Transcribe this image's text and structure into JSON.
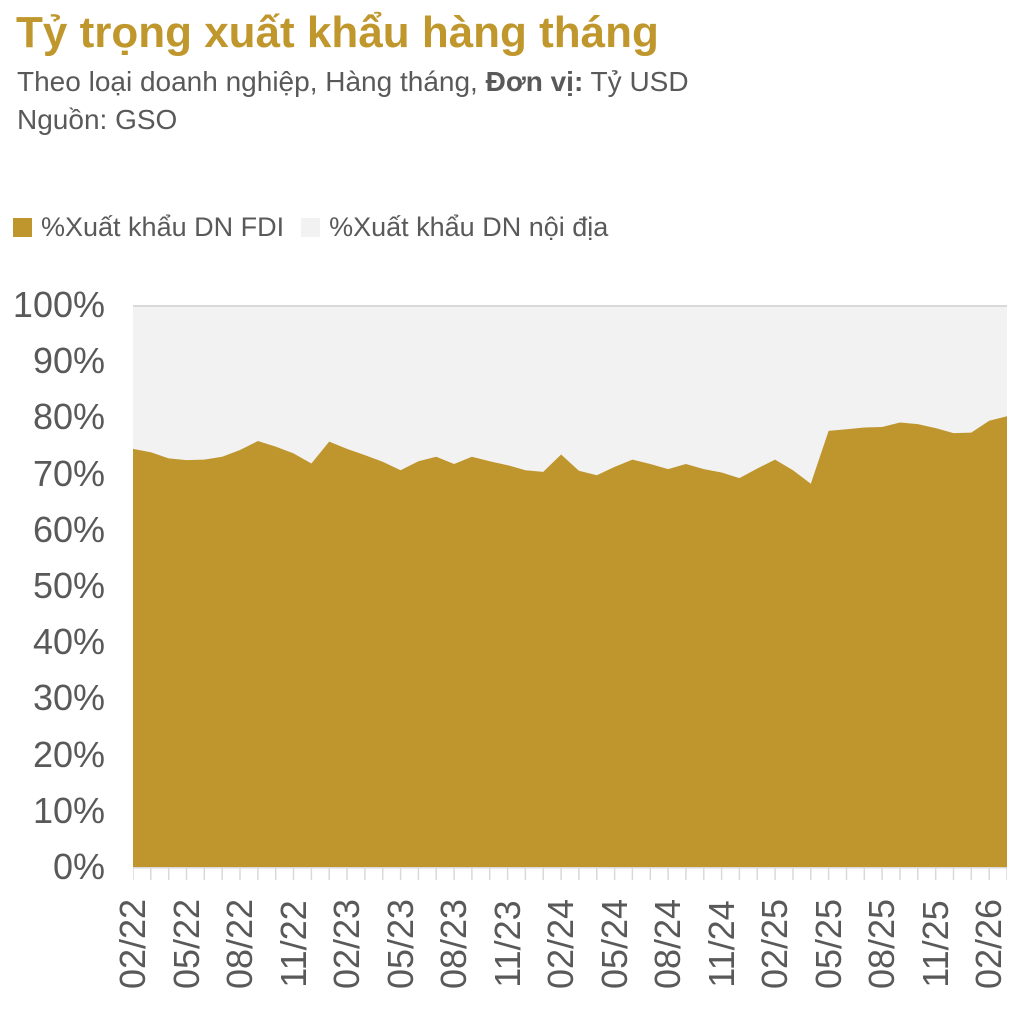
{
  "header": {
    "title": "Tỷ trọng xuất khẩu hàng tháng",
    "subtitle_prefix": "Theo loại doanh nghiệp, Hàng tháng, ",
    "subtitle_bold": "Đơn vị:",
    "subtitle_suffix": " Tỷ USD",
    "source": "Nguồn: GSO"
  },
  "legend": [
    {
      "label": "%Xuất khẩu DN FDI",
      "color": "#BF962D"
    },
    {
      "label": "%Xuất khẩu DN nội địa",
      "color": "#F2F2F2"
    }
  ],
  "colors": {
    "accent_gold": "#BF962D",
    "title_gold": "#C0972D",
    "light_gray_area": "#F2F2F2",
    "grid_border": "#D9D9D9",
    "text_gray": "#595959",
    "background": "#FFFFFF"
  },
  "chart_data": {
    "type": "area",
    "stacked_percent": true,
    "title": "Tỷ trọng xuất khẩu hàng tháng",
    "xlabel": "",
    "ylabel": "",
    "ylim": [
      0,
      100
    ],
    "grid": false,
    "legend_position": "top-left",
    "x_label_every": 3,
    "x": [
      "02/22",
      "03/22",
      "04/22",
      "05/22",
      "06/22",
      "07/22",
      "08/22",
      "09/22",
      "10/22",
      "11/22",
      "12/22",
      "01/23",
      "02/23",
      "03/23",
      "04/23",
      "05/23",
      "06/23",
      "07/23",
      "08/23",
      "09/23",
      "10/23",
      "11/23",
      "12/23",
      "01/24",
      "02/24",
      "03/24",
      "04/24",
      "05/24",
      "06/24",
      "07/24",
      "08/24",
      "09/24",
      "10/24",
      "11/24",
      "12/24",
      "01/25",
      "02/25",
      "03/25",
      "04/25",
      "05/25",
      "06/25",
      "07/25",
      "08/25",
      "09/25",
      "10/25",
      "11/25",
      "12/25",
      "01/26",
      "02/26",
      "03/26"
    ],
    "y_ticks": [
      "100%",
      "90%",
      "80%",
      "70%",
      "60%",
      "50%",
      "40%",
      "30%",
      "20%",
      "10%",
      "0%"
    ],
    "series": [
      {
        "name": "%Xuất khẩu DN FDI",
        "color": "#BF962D",
        "values": [
          74.4,
          73.8,
          72.7,
          72.4,
          72.5,
          73.0,
          74.2,
          75.8,
          74.8,
          73.6,
          71.8,
          75.7,
          74.4,
          73.3,
          72.1,
          70.6,
          72.2,
          73.0,
          71.7,
          73.0,
          72.2,
          71.5,
          70.6,
          70.3,
          73.4,
          70.5,
          69.7,
          71.2,
          72.5,
          71.7,
          70.8,
          71.7,
          70.8,
          70.2,
          69.2,
          70.9,
          72.5,
          70.6,
          68.2,
          77.6,
          77.9,
          78.2,
          78.3,
          79.1,
          78.8,
          78.1,
          77.2,
          77.3,
          79.4,
          80.2
        ]
      },
      {
        "name": "%Xuất khẩu DN nội địa",
        "color": "#F2F2F2",
        "values": [
          25.6,
          26.2,
          27.3,
          27.6,
          27.5,
          27.0,
          25.8,
          24.2,
          25.2,
          26.4,
          28.2,
          24.3,
          25.6,
          26.7,
          27.9,
          29.4,
          27.8,
          27.0,
          28.3,
          27.0,
          27.8,
          28.5,
          29.4,
          29.7,
          26.6,
          29.5,
          30.3,
          28.8,
          27.5,
          28.3,
          29.2,
          28.3,
          29.2,
          29.8,
          30.8,
          29.1,
          27.5,
          29.4,
          31.8,
          22.4,
          22.1,
          21.8,
          21.7,
          20.9,
          21.2,
          21.9,
          22.8,
          22.7,
          20.6,
          19.8
        ]
      }
    ]
  }
}
